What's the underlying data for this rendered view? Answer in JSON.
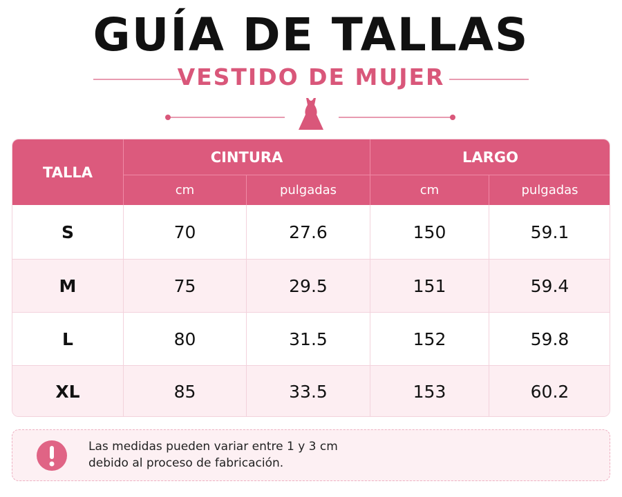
{
  "header": {
    "title": "GUÍA DE TALLAS",
    "subtitle": "VESTIDO DE MUJER"
  },
  "table": {
    "corner": "TALLA",
    "groups": [
      "CINTURA",
      "LARGO"
    ],
    "units": [
      "cm",
      "pulgadas",
      "cm",
      "pulgadas"
    ],
    "rows": [
      [
        "S",
        70,
        27.6,
        150,
        59.1
      ],
      [
        "M",
        75,
        29.5,
        151,
        59.4
      ],
      [
        "L",
        80,
        31.5,
        152,
        59.8
      ],
      [
        "XL",
        85,
        33.5,
        153,
        60.2
      ]
    ]
  },
  "note": {
    "lines": [
      "Las medidas pueden variar entre 1 y 3 cm",
      "debido al proceso de fabricación."
    ]
  }
}
